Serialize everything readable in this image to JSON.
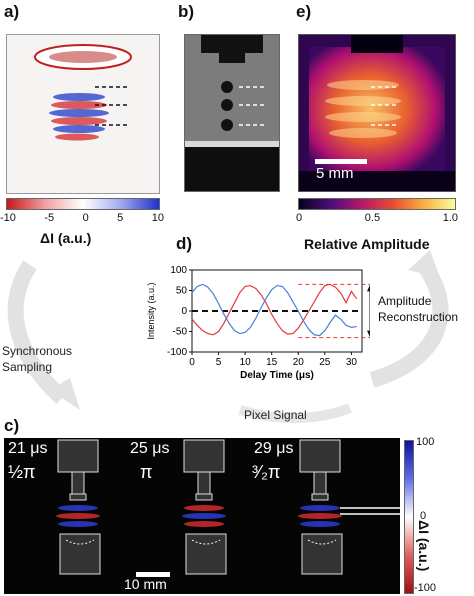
{
  "panels": {
    "a": {
      "label": "a)",
      "colorbar_ticks": [
        "-10",
        "-5",
        "0",
        "5",
        "10"
      ],
      "colorbar_label": "ΔI (a.u.)"
    },
    "b": {
      "label": "b)"
    },
    "e": {
      "label": "e)",
      "scalebar": "5 mm",
      "colorbar_ticks": [
        "0",
        "0.5",
        "1.0"
      ],
      "colorbar_label": "Relative Amplitude"
    },
    "d": {
      "label": "d)",
      "annotation_1": "Amplitude",
      "annotation_2": "Reconstruction"
    },
    "c": {
      "label": "c)",
      "frames": [
        {
          "time": "21 μs",
          "phase": "½π"
        },
        {
          "time": "25 μs",
          "phase": "π"
        },
        {
          "time": "29 μs",
          "phase": "³⁄₂π"
        }
      ],
      "scalebar": "10 mm",
      "colorbar_ticks": [
        "100",
        "0",
        "-100"
      ],
      "colorbar_label": "ΔI (a.u.)"
    }
  },
  "arrows": {
    "synchronous_1": "Synchronous",
    "synchronous_2": "Sampling",
    "pixel_signal": "Pixel Signal"
  },
  "colors": {
    "red_series": "#e03a3a",
    "blue_series": "#4a7fd6",
    "dashed_zero": "#111111",
    "dashed_amp": "#e03a3a"
  },
  "chart_data": {
    "type": "line",
    "xlabel": "Delay Time (μs)",
    "ylabel": "Intensity (a.u.)",
    "xlim": [
      0,
      32
    ],
    "ylim": [
      -100,
      100
    ],
    "xticks": [
      0,
      5,
      10,
      15,
      20,
      25,
      30
    ],
    "yticks": [
      100,
      50,
      0,
      -50,
      -100
    ],
    "series": [
      {
        "color": "red",
        "x": [
          0,
          1,
          2,
          3,
          4,
          5,
          6,
          7,
          8,
          9,
          10,
          11,
          12,
          13,
          14,
          15,
          16,
          17,
          18,
          19,
          20,
          21,
          22,
          23,
          24,
          25,
          26,
          27,
          28,
          29,
          30,
          31
        ],
        "values": [
          -20,
          -35,
          -48,
          -55,
          -58,
          -50,
          -30,
          -5,
          20,
          45,
          60,
          62,
          55,
          40,
          18,
          -8,
          -30,
          -48,
          -56,
          -55,
          -42,
          -22,
          0,
          22,
          45,
          62,
          65,
          58,
          44,
          20,
          48,
          30
        ]
      },
      {
        "color": "blue",
        "x": [
          0,
          1,
          2,
          3,
          4,
          5,
          6,
          7,
          8,
          9,
          10,
          11,
          12,
          13,
          14,
          15,
          16,
          17,
          18,
          19,
          20,
          21,
          22,
          23,
          24,
          25,
          26,
          27,
          28,
          29,
          30,
          31
        ],
        "values": [
          45,
          60,
          65,
          58,
          42,
          18,
          -8,
          -30,
          -48,
          -55,
          -52,
          -40,
          -18,
          8,
          32,
          52,
          62,
          60,
          45,
          22,
          0,
          -25,
          -45,
          -58,
          -60,
          -48,
          -28,
          -10,
          -20,
          -35,
          -40,
          -38
        ]
      }
    ],
    "reference_lines": [
      {
        "y": 0,
        "style": "dashed"
      },
      {
        "y": 65,
        "style": "dashed"
      },
      {
        "y": -65,
        "style": "dashed"
      }
    ]
  }
}
